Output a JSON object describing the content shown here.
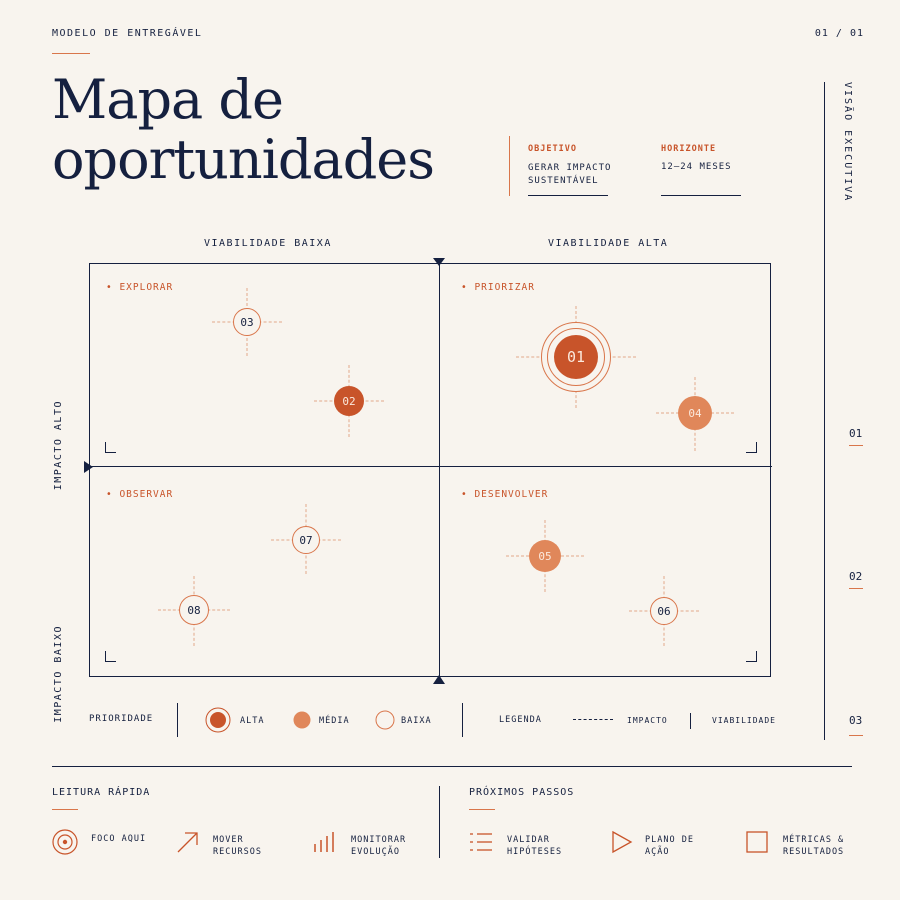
{
  "header": {
    "eyebrow": "MODELO DE ENTREGÁVEL",
    "page": "01 / 01",
    "title_line1": "Mapa de",
    "title_line2": "oportunidades",
    "objective_label": "OBJETIVO",
    "objective_line1": "GERAR IMPACTO",
    "objective_line2": "SUSTENTÁVEL",
    "horizon_label": "HORIZONTE",
    "horizon_value": "12–24 MESES"
  },
  "side": {
    "label": "VISÃO EXECUTIVA",
    "markers": [
      "01",
      "02",
      "03"
    ]
  },
  "matrix": {
    "col_labels": [
      "VIABILIDADE BAIXA",
      "VIABILIDADE ALTA"
    ],
    "row_labels": [
      "IMPACTO ALTO",
      "IMPACTO BAIXO"
    ],
    "quadrants": [
      "• EXPLORAR",
      "• PRIORIZAR",
      "• OBSERVAR",
      "• DESENVOLVER"
    ],
    "nodes": [
      {
        "id": "01",
        "priority": "hero"
      },
      {
        "id": "02",
        "priority": "high"
      },
      {
        "id": "03",
        "priority": "low"
      },
      {
        "id": "04",
        "priority": "med"
      },
      {
        "id": "05",
        "priority": "med"
      },
      {
        "id": "06",
        "priority": "low"
      },
      {
        "id": "07",
        "priority": "low"
      },
      {
        "id": "08",
        "priority": "low"
      }
    ]
  },
  "legend": {
    "priority_label": "PRIORIDADE",
    "high": "ALTA",
    "medium": "MÉDIA",
    "low": "BAIXA",
    "legend_label": "LEGENDA",
    "impact": "IMPACTO",
    "viability": "VIABILIDADE"
  },
  "footer": {
    "quick_read_label": "LEITURA RÁPIDA",
    "next_steps_label": "PRÓXIMOS PASSOS",
    "quick_items": [
      {
        "icon": "target-icon",
        "line1": "FOCO AQUI",
        "line2": ""
      },
      {
        "icon": "arrow-up-right-icon",
        "line1": "MOVER",
        "line2": "RECURSOS"
      },
      {
        "icon": "bars-icon",
        "line1": "MONITORAR",
        "line2": "EVOLUÇÃO"
      }
    ],
    "next_items": [
      {
        "icon": "list-icon",
        "line1": "VALIDAR",
        "line2": "HIPÓTESES"
      },
      {
        "icon": "play-icon",
        "line1": "PLANO DE",
        "line2": "AÇÃO"
      },
      {
        "icon": "square-icon",
        "line1": "MÉTRICAS &",
        "line2": "RESULTADOS"
      }
    ]
  },
  "colors": {
    "navy": "#15203f",
    "accent": "#c8542a",
    "accent_light": "#e0875a",
    "background": "#f8f4ee"
  }
}
